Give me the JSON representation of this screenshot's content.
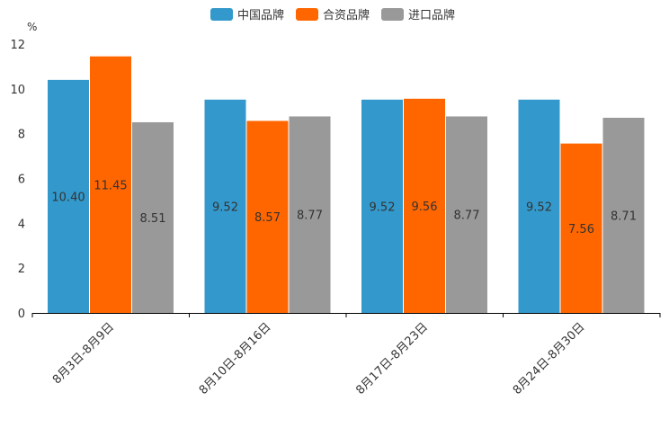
{
  "chart_data": {
    "type": "bar",
    "title": "",
    "ylabel": "%",
    "xlabel": "",
    "ylim": [
      0,
      12
    ],
    "yticks": [
      0,
      2,
      4,
      6,
      8,
      10,
      12
    ],
    "legend_position": "top-center",
    "categories": [
      "8月3日-8月9日",
      "8月10日-8月16日",
      "8月17日-8月23日",
      "8月24日-8月30日"
    ],
    "series": [
      {
        "name": "中国品牌",
        "color": "#3399cc",
        "values": [
          10.4,
          9.52,
          9.52,
          9.52
        ],
        "labels": [
          "10.40",
          "9.52",
          "9.52",
          "9.52"
        ]
      },
      {
        "name": "合资品牌",
        "color": "#ff6600",
        "values": [
          11.45,
          8.57,
          9.56,
          7.56
        ],
        "labels": [
          "11.45",
          "8.57",
          "9.56",
          "7.56"
        ]
      },
      {
        "name": "进口品牌",
        "color": "#999999",
        "values": [
          8.51,
          8.77,
          8.77,
          8.71
        ],
        "labels": [
          "8.51",
          "8.77",
          "8.77",
          "8.71"
        ]
      }
    ]
  }
}
